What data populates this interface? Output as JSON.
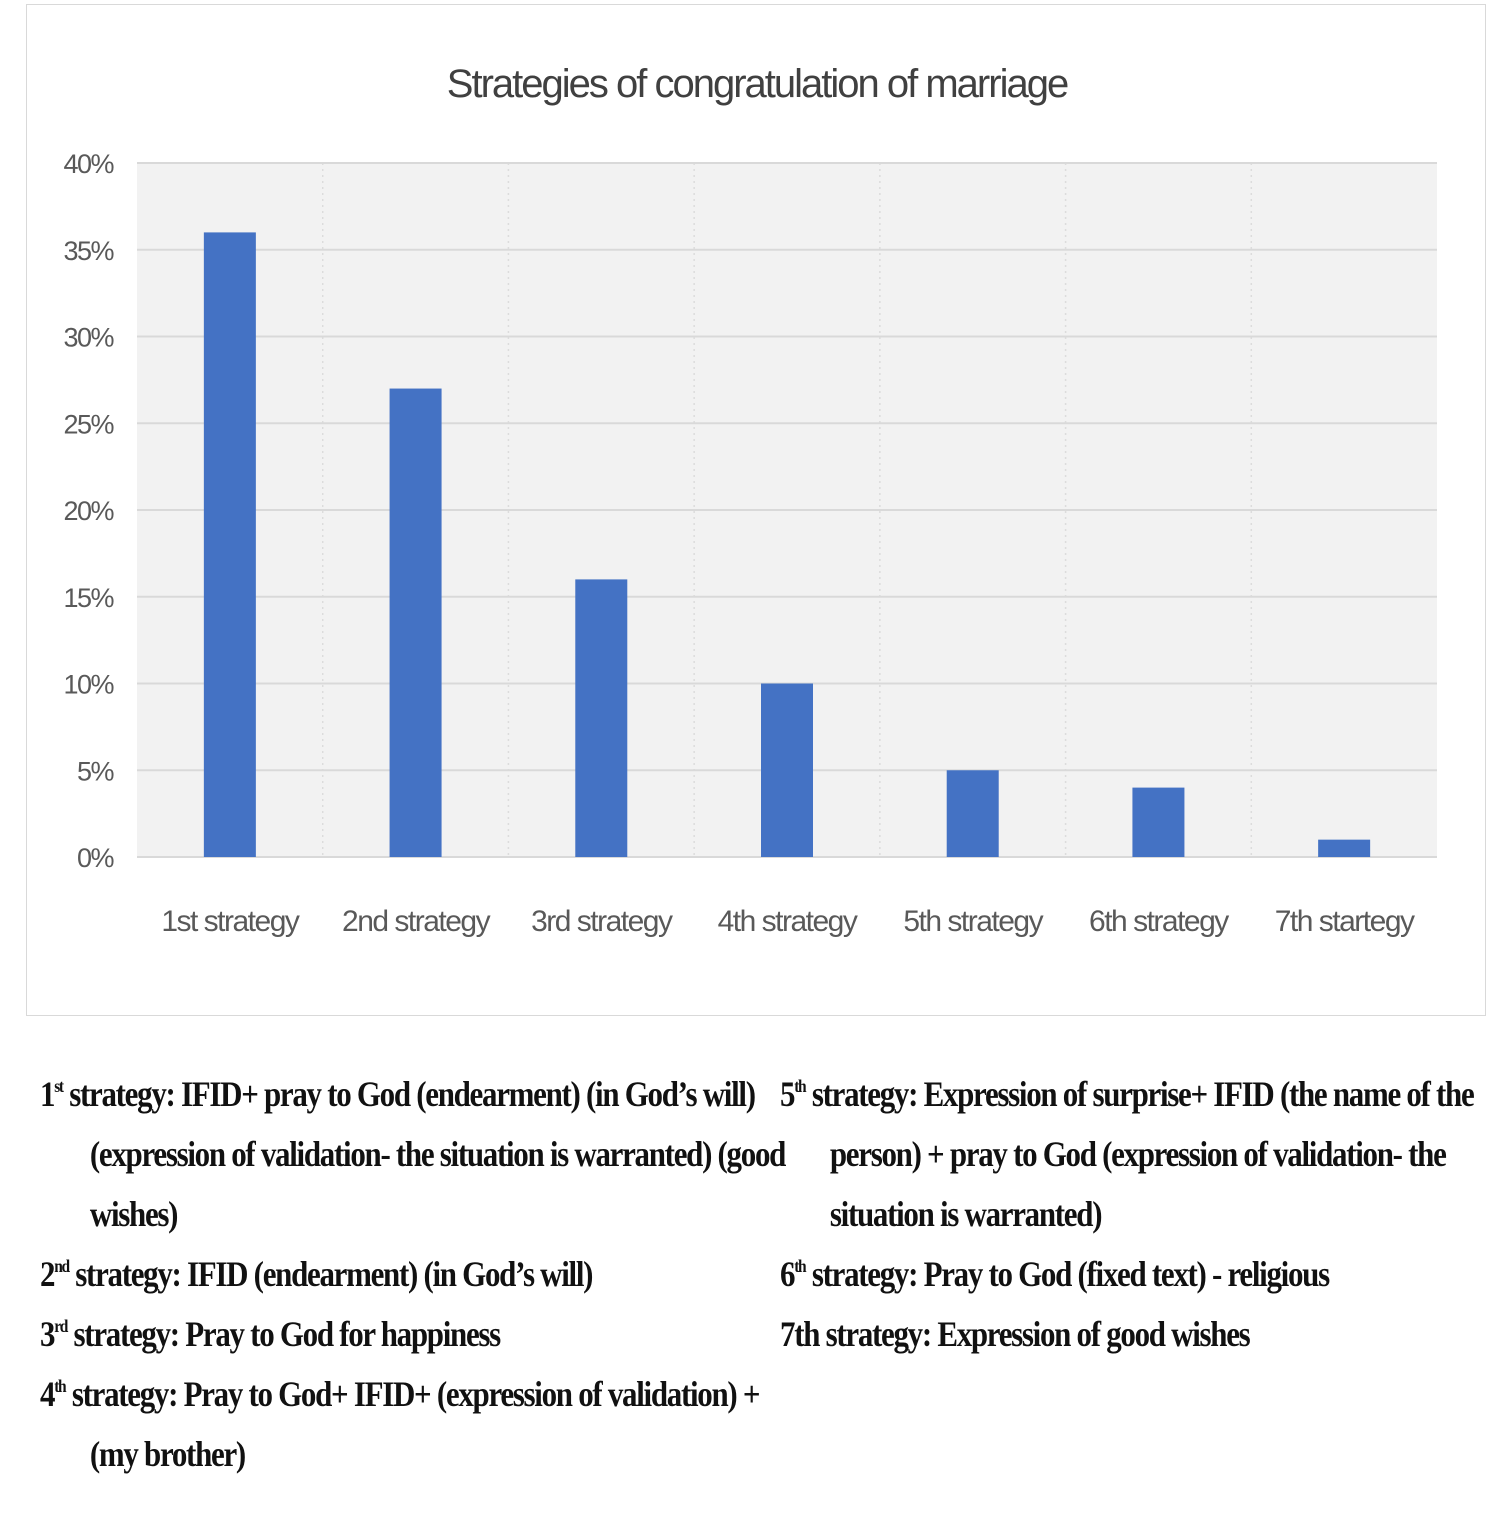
{
  "chart_data": {
    "type": "bar",
    "title": "Strategies of congratulation of marriage",
    "categories": [
      "1st strategy",
      "2nd strategy",
      "3rd strategy",
      "4th strategy",
      "5th strategy",
      "6th strategy",
      "7th startegy"
    ],
    "values": [
      36,
      27,
      16,
      10,
      5,
      4,
      1
    ],
    "y_tick_labels": [
      "0%",
      "5%",
      "10%",
      "15%",
      "20%",
      "25%",
      "30%",
      "35%",
      "40%"
    ],
    "ylim": [
      0,
      40
    ],
    "unit": "%",
    "grid": true,
    "bar_color": "#4472c4",
    "plot_background": "#f2f2f2",
    "gridline_color": "#d9d9d9"
  },
  "legend": {
    "left": [
      {
        "ordinal": "1",
        "sup": "st",
        "text": " strategy: IFID+ pray to God (endearment) (in God’s will) (expression of validation- the situation is warranted) (good wishes)"
      },
      {
        "ordinal": "2",
        "sup": "nd",
        "text": " strategy: IFID (endearment) (in God’s will)"
      },
      {
        "ordinal": "3",
        "sup": "rd",
        "text": " strategy: Pray to God for happiness"
      },
      {
        "ordinal": "4",
        "sup": "th",
        "text": " strategy: Pray to God+ IFID+ (expression of validation) + (my brother)"
      }
    ],
    "right": [
      {
        "ordinal": "5",
        "sup": "th",
        "text": " strategy: Expression of surprise+ IFID (the name of the person) + pray to God (expression of validation- the situation is warranted)"
      },
      {
        "ordinal": "6",
        "sup": "th",
        "text": " strategy: Pray to God (fixed text) - religious"
      },
      {
        "ordinal": "7",
        "sup": "",
        "text": "th strategy: Expression of good wishes"
      }
    ]
  }
}
